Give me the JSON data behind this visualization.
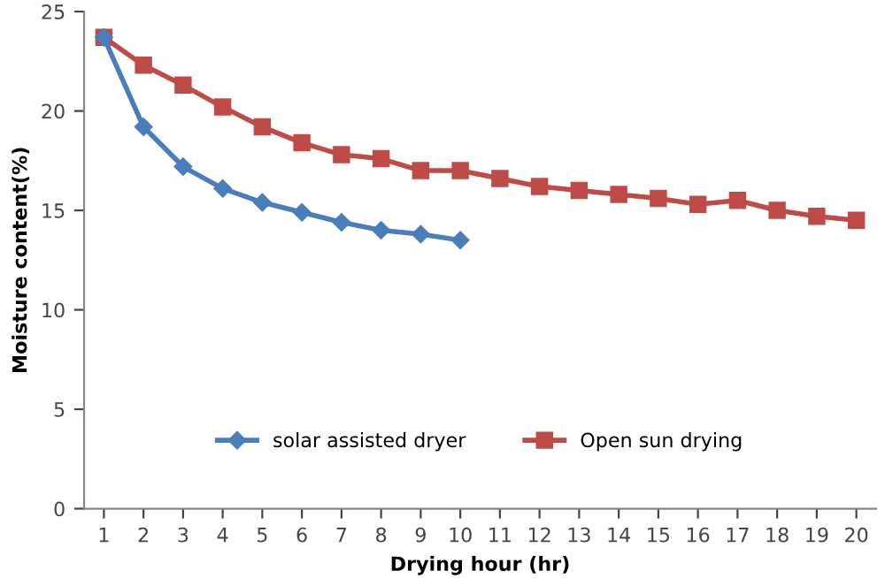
{
  "chart_data": {
    "type": "line",
    "xlabel": "Drying hour (hr)",
    "ylabel": "Moisture content(%)",
    "categories": [
      "1",
      "2",
      "3",
      "4",
      "5",
      "6",
      "7",
      "8",
      "9",
      "10",
      "11",
      "12",
      "13",
      "14",
      "15",
      "16",
      "17",
      "18",
      "19",
      "20"
    ],
    "series": [
      {
        "name": "solar assisted dryer",
        "color": "#4a7ebb",
        "marker": "diamond",
        "values": [
          23.7,
          19.2,
          17.2,
          16.1,
          15.4,
          14.9,
          14.4,
          14.0,
          13.8,
          13.5,
          null,
          null,
          null,
          null,
          null,
          null,
          null,
          null,
          null,
          null
        ]
      },
      {
        "name": "Open sun drying",
        "color": "#be4b48",
        "marker": "square",
        "values": [
          23.7,
          22.3,
          21.3,
          20.2,
          19.2,
          18.4,
          17.8,
          17.6,
          17.0,
          17.0,
          16.6,
          16.2,
          16.0,
          15.8,
          15.6,
          15.3,
          15.5,
          15.0,
          14.7,
          14.5
        ]
      }
    ],
    "ylim": [
      0,
      25
    ],
    "yticks": [
      0,
      5,
      10,
      15,
      20,
      25
    ],
    "grid": false,
    "legend": "bottom"
  }
}
